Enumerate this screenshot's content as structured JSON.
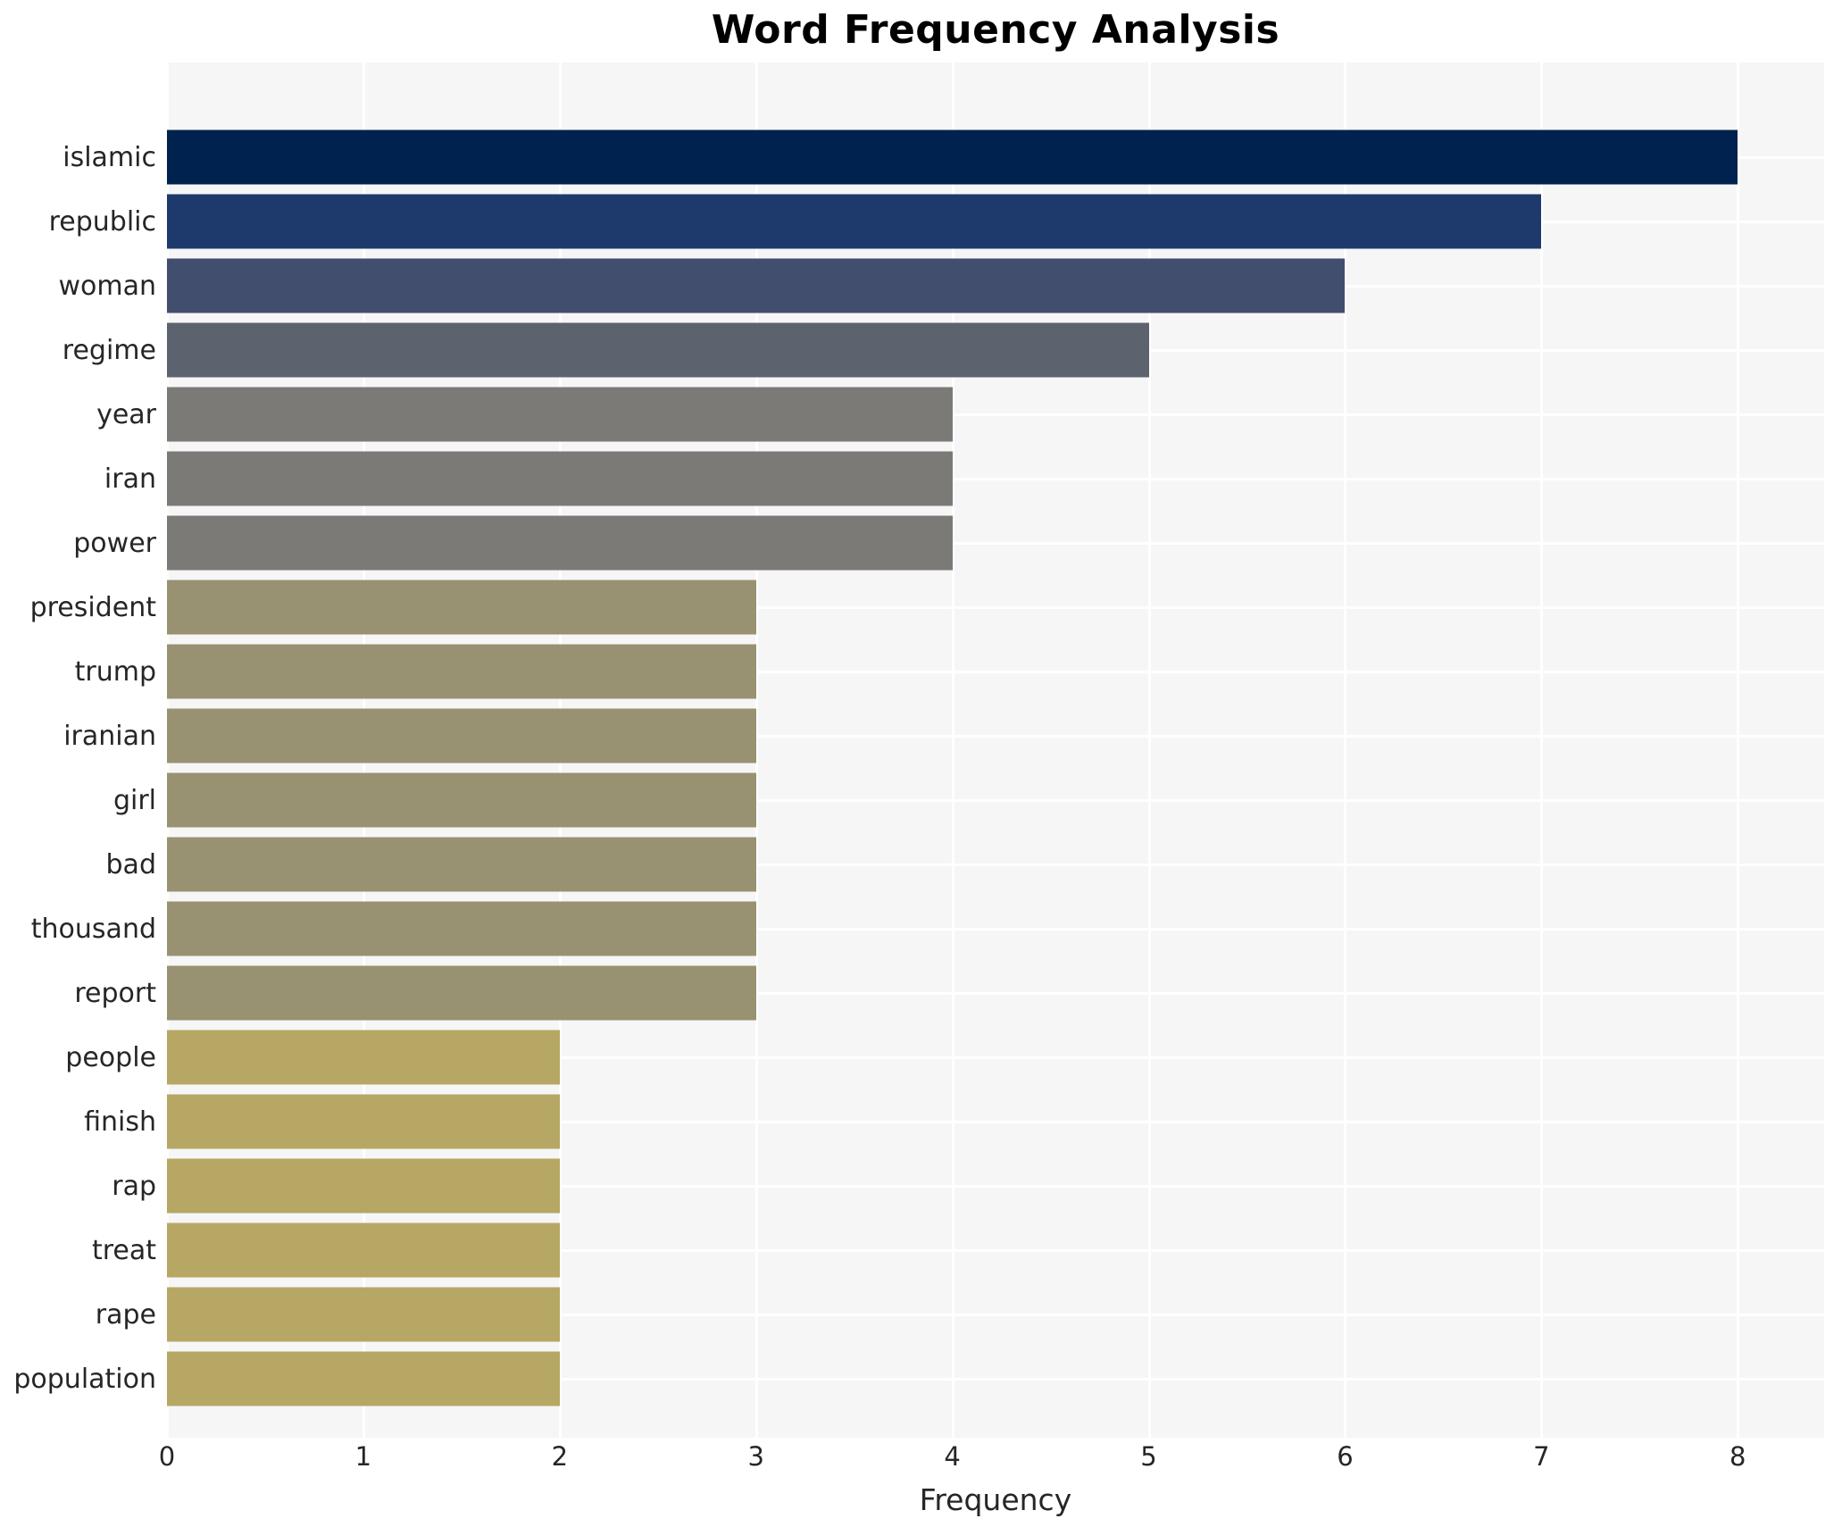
{
  "chart_data": {
    "type": "bar",
    "orientation": "horizontal",
    "title": "Word Frequency Analysis",
    "xlabel": "Frequency",
    "ylabel": "",
    "categories": [
      "islamic",
      "republic",
      "woman",
      "regime",
      "year",
      "iran",
      "power",
      "president",
      "trump",
      "iranian",
      "girl",
      "bad",
      "thousand",
      "report",
      "people",
      "finish",
      "rap",
      "treat",
      "rape",
      "population"
    ],
    "values": [
      8,
      7,
      6,
      5,
      4,
      4,
      4,
      3,
      3,
      3,
      3,
      3,
      3,
      3,
      2,
      2,
      2,
      2,
      2,
      2
    ],
    "xticks": [
      0,
      1,
      2,
      3,
      4,
      5,
      6,
      7,
      8
    ],
    "xlim": [
      0,
      8.44
    ],
    "grid": true,
    "legend": false,
    "plot_background": "#f6f6f7",
    "grid_color": "#ffffff",
    "colors_by_value": {
      "8": "#00224e",
      "7": "#1e3a6c",
      "6": "#414e6e",
      "5": "#5c626e",
      "4": "#7b7a77",
      "3": "#999272",
      "2": "#b6a765"
    }
  }
}
